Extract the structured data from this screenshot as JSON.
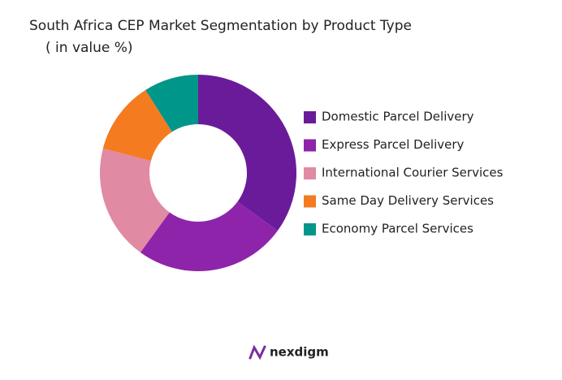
{
  "chart_data": {
    "type": "donut",
    "title": "South Africa CEP Market Segmentation by Product Type",
    "subtitle": "( in value %)",
    "categories": [
      "Domestic Parcel Delivery",
      "Express Parcel Delivery",
      "International Courier Services",
      "Same Day Delivery Services",
      "Economy Parcel Services"
    ],
    "values": [
      35,
      25,
      19,
      12,
      9
    ],
    "colors": [
      "#6a1b9a",
      "#8e24aa",
      "#e08aa4",
      "#f47b20",
      "#00968a"
    ],
    "legend": "right"
  },
  "brand": "nexdigm"
}
